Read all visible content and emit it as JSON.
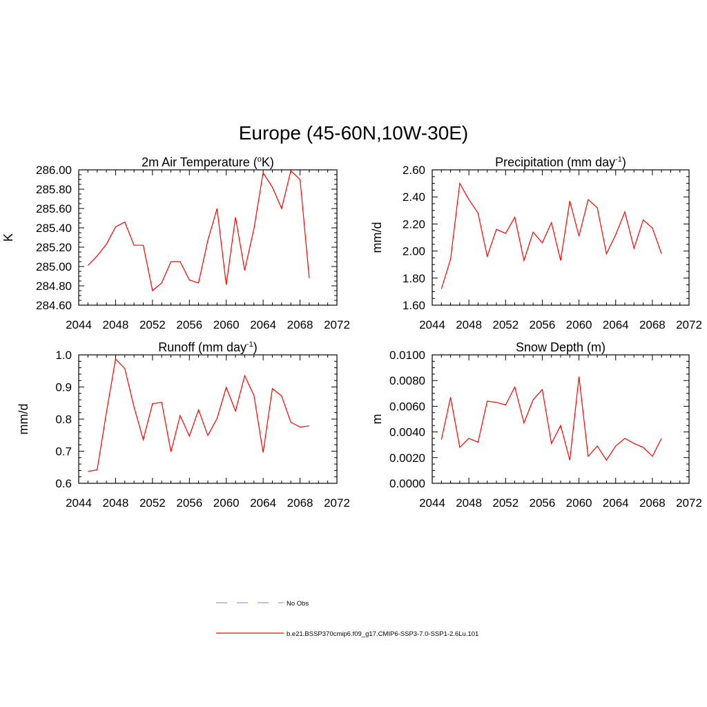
{
  "figure": {
    "title": "Europe (45-60N,10W-30E)"
  },
  "legend": {
    "items": [
      {
        "label": "No Obs",
        "color": "#9999dd",
        "style": "dashed"
      },
      {
        "label": "b.e21.BSSP370cmip6.f09_g17.CMIP6-SSP3-7.0-SSP1-2.6Lu.101",
        "color": "#ff0000",
        "style": "solid"
      }
    ]
  },
  "chart_data": [
    {
      "type": "line",
      "title": "2m Air Temperature (°K)",
      "title_parts": [
        "2m Air Temperature (",
        "o",
        "K)"
      ],
      "ylabel": "K",
      "xlim": [
        2044,
        2072
      ],
      "ylim": [
        284.6,
        286.0
      ],
      "xticks": [
        2044,
        2048,
        2052,
        2056,
        2060,
        2064,
        2068,
        2072
      ],
      "yticks": [
        284.6,
        284.8,
        285.0,
        285.2,
        285.4,
        285.6,
        285.8,
        286.0
      ],
      "ytick_labels": [
        "284.60",
        "284.80",
        "285.00",
        "285.20",
        "285.40",
        "285.60",
        "285.80",
        "286.00"
      ],
      "grid": false,
      "series": [
        {
          "color": "#ff0000",
          "x": [
            2045,
            2046,
            2047,
            2048,
            2049,
            2050,
            2051,
            2052,
            2053,
            2054,
            2055,
            2056,
            2057,
            2058,
            2059,
            2060,
            2061,
            2062,
            2063,
            2064,
            2065,
            2066,
            2067,
            2068,
            2069
          ],
          "y": [
            285.01,
            285.11,
            285.23,
            285.41,
            285.46,
            285.22,
            285.22,
            284.75,
            284.83,
            285.05,
            285.05,
            284.86,
            284.83,
            285.27,
            285.6,
            284.81,
            285.51,
            284.96,
            285.39,
            285.97,
            285.82,
            285.6,
            285.99,
            285.9,
            284.88
          ]
        }
      ]
    },
    {
      "type": "line",
      "title": "Precipitation (mm day-1)",
      "title_parts": [
        "Precipitation (mm day",
        "-1",
        ")"
      ],
      "ylabel": "mm/d",
      "xlim": [
        2044,
        2072
      ],
      "ylim": [
        1.6,
        2.6
      ],
      "xticks": [
        2044,
        2048,
        2052,
        2056,
        2060,
        2064,
        2068,
        2072
      ],
      "yticks": [
        1.6,
        1.8,
        2.0,
        2.2,
        2.4,
        2.6
      ],
      "ytick_labels": [
        "1.60",
        "1.80",
        "2.00",
        "2.20",
        "2.40",
        "2.60"
      ],
      "grid": false,
      "series": [
        {
          "color": "#ff0000",
          "x": [
            2045,
            2046,
            2047,
            2048,
            2049,
            2050,
            2051,
            2052,
            2053,
            2054,
            2055,
            2056,
            2057,
            2058,
            2059,
            2060,
            2061,
            2062,
            2063,
            2064,
            2065,
            2066,
            2067,
            2068,
            2069
          ],
          "y": [
            1.72,
            1.94,
            2.5,
            2.38,
            2.28,
            1.96,
            2.16,
            2.13,
            2.25,
            1.93,
            2.14,
            2.06,
            2.21,
            1.93,
            2.37,
            2.11,
            2.38,
            2.32,
            1.98,
            2.12,
            2.29,
            2.02,
            2.23,
            2.17,
            1.98
          ]
        }
      ]
    },
    {
      "type": "line",
      "title": "Runoff (mm day-1)",
      "title_parts": [
        "Runoff (mm day",
        "-1",
        ")"
      ],
      "ylabel": "mm/d",
      "xlim": [
        2044,
        2072
      ],
      "ylim": [
        0.6,
        1.0
      ],
      "xticks": [
        2044,
        2048,
        2052,
        2056,
        2060,
        2064,
        2068,
        2072
      ],
      "yticks": [
        0.6,
        0.7,
        0.8,
        0.9,
        1.0
      ],
      "ytick_labels": [
        "0.6",
        "0.7",
        "0.8",
        "0.9",
        "1.0"
      ],
      "grid": false,
      "series": [
        {
          "color": "#ff0000",
          "x": [
            2045,
            2046,
            2047,
            2048,
            2049,
            2050,
            2051,
            2052,
            2053,
            2054,
            2055,
            2056,
            2057,
            2058,
            2059,
            2060,
            2061,
            2062,
            2063,
            2064,
            2065,
            2066,
            2067,
            2068,
            2069
          ],
          "y": [
            0.637,
            0.642,
            0.82,
            0.987,
            0.957,
            0.838,
            0.736,
            0.848,
            0.852,
            0.698,
            0.811,
            0.747,
            0.829,
            0.749,
            0.802,
            0.899,
            0.825,
            0.935,
            0.874,
            0.696,
            0.895,
            0.872,
            0.79,
            0.775,
            0.779
          ]
        }
      ]
    },
    {
      "type": "line",
      "title": "Snow Depth (m)",
      "title_parts": [
        "Snow Depth (m)"
      ],
      "ylabel": "m",
      "xlim": [
        2044,
        2072
      ],
      "ylim": [
        0.0,
        0.01
      ],
      "xticks": [
        2044,
        2048,
        2052,
        2056,
        2060,
        2064,
        2068,
        2072
      ],
      "yticks": [
        0.0,
        0.002,
        0.004,
        0.006,
        0.008,
        0.01
      ],
      "ytick_labels": [
        "0.0000",
        "0.0020",
        "0.0040",
        "0.0060",
        "0.0080",
        "0.0100"
      ],
      "grid": false,
      "series": [
        {
          "color": "#ff0000",
          "x": [
            2045,
            2046,
            2047,
            2048,
            2049,
            2050,
            2051,
            2052,
            2053,
            2054,
            2055,
            2056,
            2057,
            2058,
            2059,
            2060,
            2061,
            2062,
            2063,
            2064,
            2065,
            2066,
            2067,
            2068,
            2069
          ],
          "y": [
            0.0034,
            0.0067,
            0.0028,
            0.0035,
            0.0032,
            0.0064,
            0.0063,
            0.0061,
            0.0075,
            0.0047,
            0.0065,
            0.0073,
            0.0031,
            0.0045,
            0.0018,
            0.0083,
            0.0021,
            0.0029,
            0.0018,
            0.0029,
            0.0035,
            0.0031,
            0.0028,
            0.0021,
            0.0035
          ]
        }
      ]
    }
  ]
}
